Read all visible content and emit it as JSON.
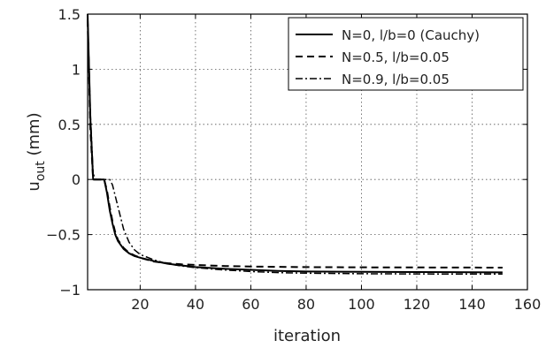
{
  "chart_data": {
    "type": "line",
    "title": "",
    "xlabel": "iteration",
    "ylabel": "u",
    "ylabel_subscript": "out",
    "ylabel_unit": " (mm)",
    "xlim": [
      1,
      160
    ],
    "ylim": [
      -1,
      1.5
    ],
    "xticks": [
      20,
      40,
      60,
      80,
      100,
      120,
      140,
      160
    ],
    "yticks": [
      -1,
      -0.5,
      0,
      0.5,
      1,
      1.5
    ],
    "xtick_labels": [
      "20",
      "40",
      "60",
      "80",
      "100",
      "120",
      "140",
      "160"
    ],
    "ytick_labels": [
      "−1",
      "−0.5",
      "0",
      "0.5",
      "1",
      "1.5"
    ],
    "grid": true,
    "grid_style": "dotted",
    "legend_position": "top-right",
    "series": [
      {
        "name": "N=0, l/b=0 (Cauchy)",
        "style": "solid",
        "color": "#000000",
        "points": [
          [
            1,
            1.5
          ],
          [
            2,
            0.55
          ],
          [
            3,
            0.0
          ],
          [
            6,
            0.0
          ],
          [
            7,
            0.0
          ],
          [
            8,
            -0.12
          ],
          [
            9,
            -0.28
          ],
          [
            10,
            -0.4
          ],
          [
            11,
            -0.5
          ],
          [
            12,
            -0.56
          ],
          [
            14,
            -0.63
          ],
          [
            16,
            -0.67
          ],
          [
            18,
            -0.695
          ],
          [
            20,
            -0.71
          ],
          [
            25,
            -0.74
          ],
          [
            30,
            -0.765
          ],
          [
            35,
            -0.78
          ],
          [
            40,
            -0.795
          ],
          [
            50,
            -0.81
          ],
          [
            60,
            -0.82
          ],
          [
            70,
            -0.83
          ],
          [
            80,
            -0.835
          ],
          [
            100,
            -0.838
          ],
          [
            120,
            -0.84
          ],
          [
            140,
            -0.842
          ],
          [
            151,
            -0.843
          ]
        ]
      },
      {
        "name": "N=0.5, l/b=0.05",
        "style": "dashed",
        "color": "#000000",
        "points": [
          [
            1,
            1.45
          ],
          [
            2,
            0.45
          ],
          [
            3,
            0.0
          ],
          [
            6,
            0.0
          ],
          [
            7,
            0.0
          ],
          [
            8,
            -0.1
          ],
          [
            9,
            -0.25
          ],
          [
            10,
            -0.38
          ],
          [
            11,
            -0.48
          ],
          [
            12,
            -0.55
          ],
          [
            14,
            -0.62
          ],
          [
            16,
            -0.665
          ],
          [
            18,
            -0.69
          ],
          [
            20,
            -0.71
          ],
          [
            25,
            -0.745
          ],
          [
            30,
            -0.76
          ],
          [
            35,
            -0.77
          ],
          [
            40,
            -0.775
          ],
          [
            50,
            -0.785
          ],
          [
            60,
            -0.79
          ],
          [
            80,
            -0.795
          ],
          [
            100,
            -0.797
          ],
          [
            120,
            -0.798
          ],
          [
            140,
            -0.799
          ],
          [
            151,
            -0.8
          ]
        ]
      },
      {
        "name": "N=0.9, l/b=0.05",
        "style": "dashdot",
        "color": "#000000",
        "points": [
          [
            1,
            1.5
          ],
          [
            2,
            0.6
          ],
          [
            3,
            0.05
          ],
          [
            4,
            0.0
          ],
          [
            9,
            0.0
          ],
          [
            10,
            -0.05
          ],
          [
            12,
            -0.25
          ],
          [
            14,
            -0.45
          ],
          [
            16,
            -0.57
          ],
          [
            18,
            -0.64
          ],
          [
            20,
            -0.68
          ],
          [
            25,
            -0.73
          ],
          [
            30,
            -0.765
          ],
          [
            35,
            -0.785
          ],
          [
            40,
            -0.8
          ],
          [
            50,
            -0.82
          ],
          [
            60,
            -0.835
          ],
          [
            70,
            -0.845
          ],
          [
            80,
            -0.85
          ],
          [
            100,
            -0.855
          ],
          [
            120,
            -0.857
          ],
          [
            140,
            -0.858
          ],
          [
            151,
            -0.858
          ]
        ]
      }
    ]
  }
}
